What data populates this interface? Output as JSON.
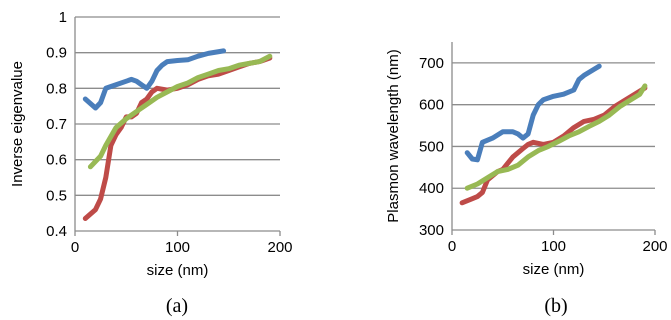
{
  "colors": {
    "blue": "#4a7ebb",
    "red": "#be4b48",
    "green": "#98b954"
  },
  "chart_data": [
    {
      "type": "line",
      "panel_label": "(a)",
      "xlabel": "size (nm)",
      "ylabel": "Inverse eigenvalue",
      "xlim": [
        0,
        200
      ],
      "ylim": [
        0.4,
        1
      ],
      "xticks": [
        "0",
        "100",
        "200"
      ],
      "yticks": [
        "0.4",
        "0.5",
        "0.6",
        "0.7",
        "0.8",
        "0.9",
        "1"
      ],
      "grid": "horizontal",
      "series": [
        {
          "color": "blue",
          "points": [
            [
              10,
              0.77
            ],
            [
              20,
              0.745
            ],
            [
              25,
              0.76
            ],
            [
              30,
              0.8
            ],
            [
              40,
              0.81
            ],
            [
              50,
              0.82
            ],
            [
              55,
              0.825
            ],
            [
              60,
              0.82
            ],
            [
              65,
              0.81
            ],
            [
              70,
              0.8
            ],
            [
              75,
              0.82
            ],
            [
              80,
              0.85
            ],
            [
              85,
              0.865
            ],
            [
              90,
              0.875
            ],
            [
              100,
              0.878
            ],
            [
              110,
              0.88
            ],
            [
              120,
              0.89
            ],
            [
              130,
              0.898
            ],
            [
              145,
              0.905
            ]
          ]
        },
        {
          "color": "red",
          "points": [
            [
              10,
              0.435
            ],
            [
              20,
              0.46
            ],
            [
              25,
              0.49
            ],
            [
              30,
              0.55
            ],
            [
              35,
              0.64
            ],
            [
              40,
              0.67
            ],
            [
              45,
              0.69
            ],
            [
              50,
              0.72
            ],
            [
              55,
              0.72
            ],
            [
              60,
              0.73
            ],
            [
              65,
              0.76
            ],
            [
              70,
              0.77
            ],
            [
              75,
              0.79
            ],
            [
              80,
              0.8
            ],
            [
              90,
              0.795
            ],
            [
              100,
              0.8
            ],
            [
              110,
              0.81
            ],
            [
              120,
              0.825
            ],
            [
              130,
              0.835
            ],
            [
              140,
              0.84
            ],
            [
              150,
              0.85
            ],
            [
              160,
              0.86
            ],
            [
              170,
              0.87
            ],
            [
              180,
              0.875
            ],
            [
              190,
              0.885
            ]
          ]
        },
        {
          "color": "green",
          "points": [
            [
              15,
              0.58
            ],
            [
              25,
              0.61
            ],
            [
              30,
              0.64
            ],
            [
              40,
              0.69
            ],
            [
              50,
              0.715
            ],
            [
              60,
              0.735
            ],
            [
              70,
              0.755
            ],
            [
              80,
              0.775
            ],
            [
              90,
              0.79
            ],
            [
              100,
              0.805
            ],
            [
              110,
              0.815
            ],
            [
              120,
              0.83
            ],
            [
              130,
              0.84
            ],
            [
              140,
              0.85
            ],
            [
              150,
              0.855
            ],
            [
              160,
              0.865
            ],
            [
              170,
              0.87
            ],
            [
              180,
              0.875
            ],
            [
              190,
              0.89
            ]
          ]
        }
      ]
    },
    {
      "type": "line",
      "panel_label": "(b)",
      "xlabel": "size (nm)",
      "ylabel": "Plasmon wavelength (nm)",
      "xlim": [
        0,
        200
      ],
      "ylim": [
        300,
        750
      ],
      "xticks": [
        "0",
        "100",
        "200"
      ],
      "yticks": [
        "300",
        "400",
        "500",
        "600",
        "700"
      ],
      "grid": "horizontal",
      "series": [
        {
          "color": "blue",
          "points": [
            [
              15,
              485
            ],
            [
              20,
              470
            ],
            [
              25,
              468
            ],
            [
              30,
              510
            ],
            [
              40,
              520
            ],
            [
              50,
              535
            ],
            [
              60,
              535
            ],
            [
              65,
              530
            ],
            [
              70,
              520
            ],
            [
              75,
              530
            ],
            [
              80,
              575
            ],
            [
              85,
              600
            ],
            [
              90,
              612
            ],
            [
              100,
              620
            ],
            [
              110,
              625
            ],
            [
              120,
              635
            ],
            [
              125,
              660
            ],
            [
              130,
              670
            ],
            [
              140,
              685
            ],
            [
              145,
              692
            ]
          ]
        },
        {
          "color": "red",
          "points": [
            [
              10,
              365
            ],
            [
              20,
              375
            ],
            [
              25,
              380
            ],
            [
              30,
              390
            ],
            [
              35,
              420
            ],
            [
              40,
              430
            ],
            [
              45,
              440
            ],
            [
              50,
              445
            ],
            [
              55,
              460
            ],
            [
              60,
              475
            ],
            [
              65,
              485
            ],
            [
              70,
              495
            ],
            [
              75,
              505
            ],
            [
              80,
              510
            ],
            [
              90,
              505
            ],
            [
              100,
              510
            ],
            [
              110,
              525
            ],
            [
              120,
              545
            ],
            [
              130,
              560
            ],
            [
              140,
              565
            ],
            [
              150,
              575
            ],
            [
              160,
              595
            ],
            [
              170,
              610
            ],
            [
              180,
              625
            ],
            [
              190,
              640
            ]
          ]
        },
        {
          "color": "green",
          "points": [
            [
              15,
              400
            ],
            [
              25,
              410
            ],
            [
              35,
              425
            ],
            [
              45,
              440
            ],
            [
              55,
              445
            ],
            [
              65,
              455
            ],
            [
              75,
              475
            ],
            [
              85,
              490
            ],
            [
              95,
              500
            ],
            [
              105,
              512
            ],
            [
              115,
              525
            ],
            [
              125,
              535
            ],
            [
              135,
              548
            ],
            [
              145,
              560
            ],
            [
              155,
              575
            ],
            [
              165,
              595
            ],
            [
              175,
              610
            ],
            [
              185,
              625
            ],
            [
              190,
              645
            ]
          ]
        }
      ]
    }
  ]
}
